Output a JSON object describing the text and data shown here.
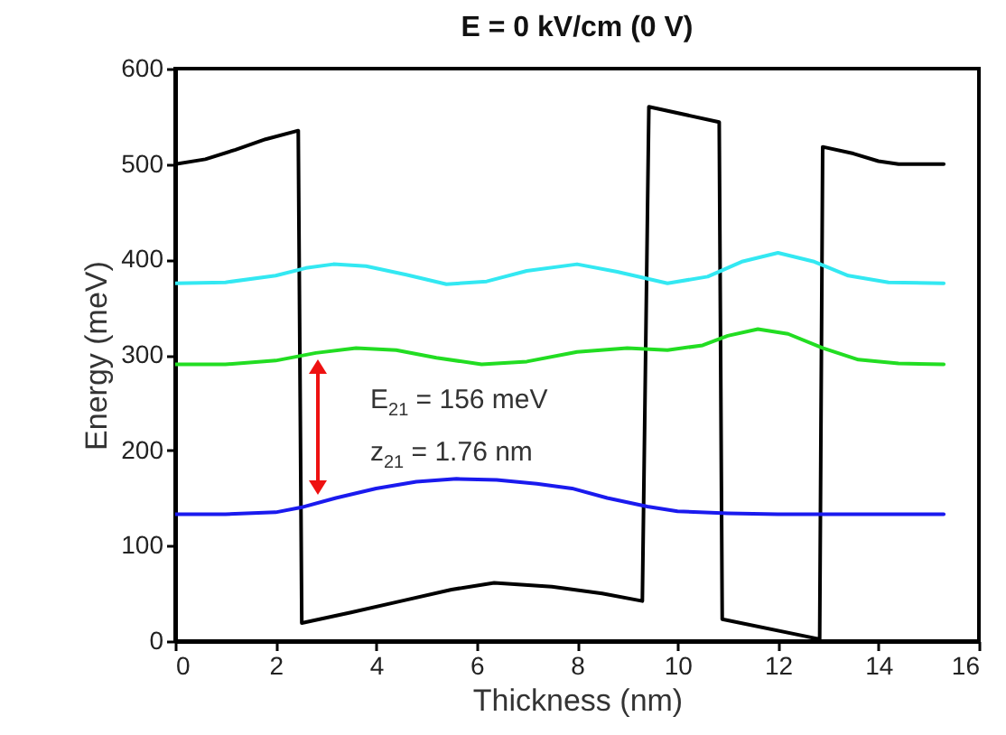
{
  "chart_data": {
    "type": "line",
    "title": "E = 0 kV/cm (0 V)",
    "xlabel": "Thickness (nm)",
    "ylabel": "Energy (meV)",
    "xlim": [
      0,
      16
    ],
    "xticks": [
      0,
      2,
      4,
      6,
      8,
      10,
      12,
      14,
      16
    ],
    "ylim": [
      0,
      600
    ],
    "yticks": [
      0,
      100,
      200,
      300,
      400,
      500,
      600
    ],
    "grid": false,
    "line_style": "solid",
    "marker": "none",
    "annotations": [
      "E$_{21}$ = 156 meV",
      "z$_{21}$ = 1.76 nm"
    ],
    "series": [
      {
        "color": "#000000",
        "x": [
          0,
          0.6,
          1.2,
          1.8,
          2.45,
          2.52,
          3.5,
          4.5,
          5.5,
          6.35,
          7.5,
          8.5,
          9.3,
          9.43,
          10.83,
          10.89,
          12.83,
          12.89,
          13.5,
          14.0,
          14.4,
          15.3
        ],
        "values": [
          500,
          505,
          515,
          526,
          535,
          19,
          30,
          42,
          54,
          61,
          57,
          50,
          42,
          560,
          544,
          23,
          2,
          518,
          511,
          503,
          500,
          500
        ]
      },
      {
        "color": "#33e8f2",
        "x": [
          0,
          1,
          2,
          2.6,
          3.15,
          3.8,
          4.6,
          5.4,
          6.2,
          7.0,
          8.0,
          8.8,
          9.8,
          10.6,
          11.3,
          12.0,
          12.7,
          13.4,
          14.2,
          15.3
        ],
        "values": [
          375,
          376,
          383,
          391,
          395,
          393,
          384,
          374,
          377,
          388,
          395,
          387,
          375,
          382,
          398,
          407,
          398,
          383,
          376,
          375
        ]
      },
      {
        "color": "#22dd22",
        "x": [
          0,
          1,
          2,
          2.8,
          3.6,
          4.4,
          5.2,
          6.1,
          7.0,
          8.0,
          9.0,
          9.8,
          10.5,
          11.0,
          11.6,
          12.2,
          12.9,
          13.6,
          14.4,
          15.3
        ],
        "values": [
          290,
          290,
          294,
          302,
          307,
          305,
          297,
          290,
          293,
          303,
          307,
          305,
          310,
          320,
          327,
          322,
          307,
          295,
          291,
          290
        ]
      },
      {
        "color": "#1a1aee",
        "x": [
          0,
          1,
          2,
          2.5,
          3.2,
          4.0,
          4.8,
          5.6,
          6.4,
          7.2,
          7.9,
          8.6,
          9.4,
          10.0,
          11.0,
          12.0,
          13.0,
          14.0,
          15.3
        ],
        "values": [
          133,
          133,
          135,
          140,
          150,
          160,
          167,
          170,
          169,
          165,
          160,
          150,
          141,
          136,
          134,
          133,
          133,
          133,
          133
        ]
      }
    ]
  }
}
